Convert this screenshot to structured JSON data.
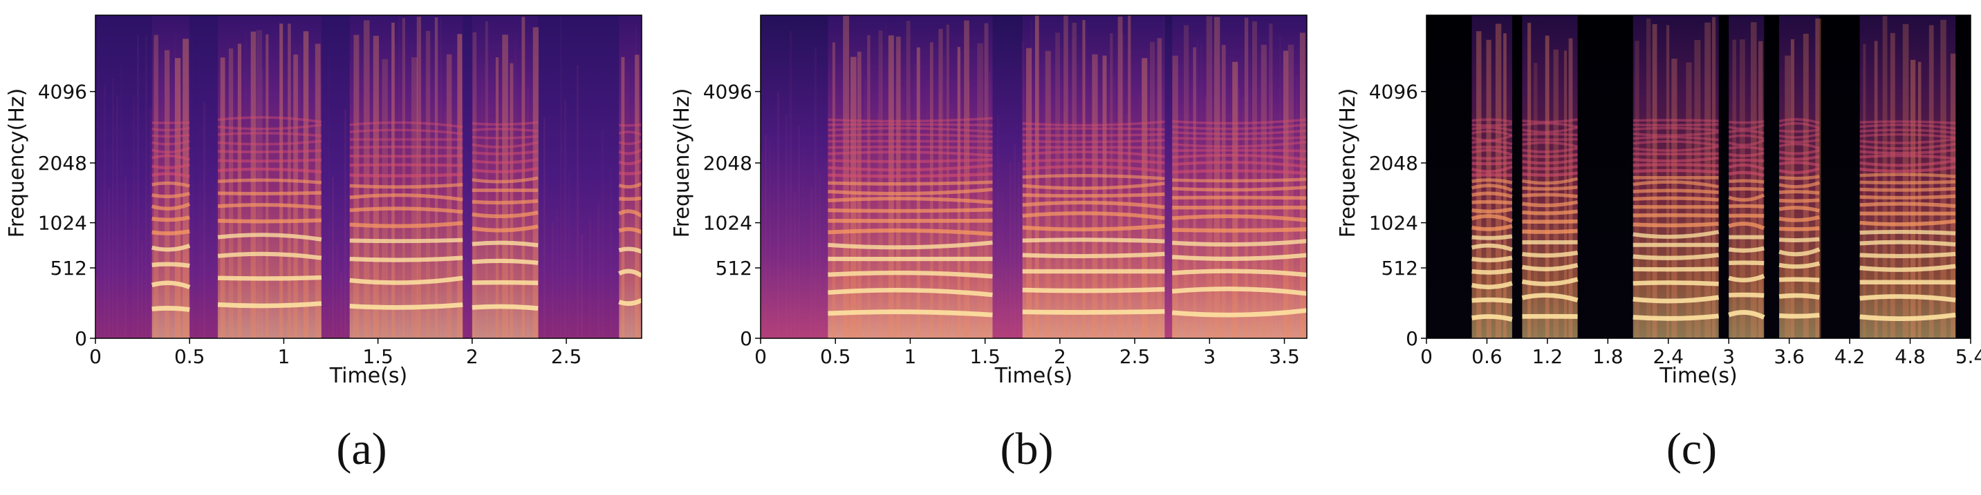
{
  "chart_data": [
    {
      "type": "heatmap",
      "panel_label": "(a)",
      "xlabel": "Time(s)",
      "ylabel": "Frequency(Hz)",
      "xlim": [
        0,
        2.9
      ],
      "xticks": [
        0,
        0.5,
        1,
        1.5,
        2,
        2.5
      ],
      "xtick_labels": [
        "0",
        "0.5",
        "1",
        "1.5",
        "2",
        "2.5"
      ],
      "yticks": [
        0,
        512,
        1024,
        2048,
        4096
      ],
      "ytick_labels": [
        "0",
        "512",
        "1024",
        "2048",
        "4096"
      ],
      "colormap": "magma",
      "background_level": 0.28,
      "voiced_segments": [
        [
          0.3,
          0.5
        ],
        [
          0.65,
          1.2
        ],
        [
          1.35,
          1.95
        ],
        [
          2.0,
          2.35
        ],
        [
          2.78,
          2.9
        ]
      ],
      "segment_f0": [
        180,
        210,
        200,
        190,
        230
      ]
    },
    {
      "type": "heatmap",
      "panel_label": "(b)",
      "xlabel": "Time(s)",
      "ylabel": "Frequency(Hz)",
      "xlim": [
        0,
        3.65
      ],
      "xticks": [
        0,
        0.5,
        1,
        1.5,
        2,
        2.5,
        3,
        3.5
      ],
      "xtick_labels": [
        "0",
        "0.5",
        "1",
        "1.5",
        "2",
        "2.5",
        "3",
        "3.5"
      ],
      "yticks": [
        0,
        512,
        1024,
        2048,
        4096
      ],
      "ytick_labels": [
        "0",
        "512",
        "1024",
        "2048",
        "4096"
      ],
      "colormap": "magma",
      "background_level": 0.32,
      "voiced_segments": [
        [
          0.45,
          1.55
        ],
        [
          1.75,
          2.7
        ],
        [
          2.75,
          3.65
        ]
      ],
      "segment_f0": [
        150,
        160,
        155
      ]
    },
    {
      "type": "heatmap",
      "panel_label": "(c)",
      "xlabel": "Time(s)",
      "ylabel": "Frequency(Hz)",
      "xlim": [
        0,
        5.4
      ],
      "xticks": [
        0,
        0.6,
        1.2,
        1.8,
        2.4,
        3,
        3.6,
        4.2,
        4.8,
        5.4
      ],
      "xtick_labels": [
        "0",
        "0.6",
        "1.2",
        "1.8",
        "2.4",
        "3",
        "3.6",
        "4.2",
        "4.8",
        "5.4"
      ],
      "yticks": [
        0,
        512,
        1024,
        2048,
        4096
      ],
      "ytick_labels": [
        "0",
        "512",
        "1024",
        "2048",
        "4096"
      ],
      "colormap": "magma",
      "background_level": 0.0,
      "voiced_segments": [
        [
          0.45,
          0.85
        ],
        [
          0.95,
          1.5
        ],
        [
          2.05,
          2.9
        ],
        [
          3.0,
          3.35
        ],
        [
          3.5,
          3.9
        ],
        [
          4.3,
          5.25
        ]
      ],
      "segment_f0": [
        120,
        130,
        125,
        140,
        135,
        128
      ]
    }
  ]
}
